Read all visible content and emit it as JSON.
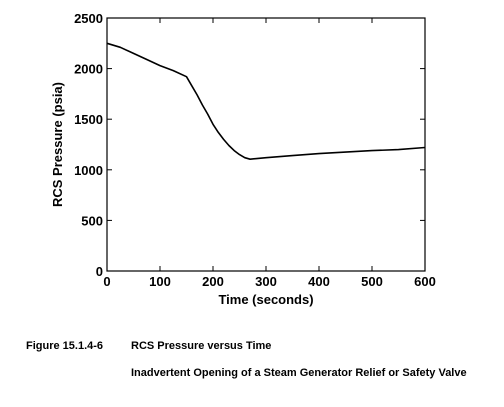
{
  "chart_data": {
    "type": "line",
    "title": "",
    "xlabel": "Time (seconds)",
    "ylabel": "RCS Pressure (psia)",
    "xlim": [
      0,
      600
    ],
    "ylim": [
      0,
      2500
    ],
    "x_ticks": [
      0,
      100,
      200,
      300,
      400,
      500,
      600
    ],
    "y_ticks": [
      0,
      500,
      1000,
      1500,
      2000,
      2500
    ],
    "grid": false,
    "legend": "none",
    "series": [
      {
        "x": [
          0,
          25,
          50,
          75,
          100,
          125,
          150,
          160,
          170,
          180,
          190,
          200,
          210,
          220,
          230,
          240,
          250,
          260,
          270,
          280,
          300,
          350,
          400,
          450,
          500,
          550,
          600
        ],
        "y": [
          2250,
          2210,
          2150,
          2090,
          2030,
          1980,
          1920,
          1830,
          1740,
          1640,
          1550,
          1450,
          1370,
          1300,
          1240,
          1190,
          1150,
          1120,
          1105,
          1110,
          1120,
          1140,
          1160,
          1175,
          1190,
          1200,
          1220
        ]
      }
    ]
  },
  "caption": {
    "number": "Figure 15.1.4-6",
    "title": "RCS Pressure versus Time",
    "subtitle": "Inadvertent Opening of a Steam Generator Relief or Safety Valve"
  }
}
